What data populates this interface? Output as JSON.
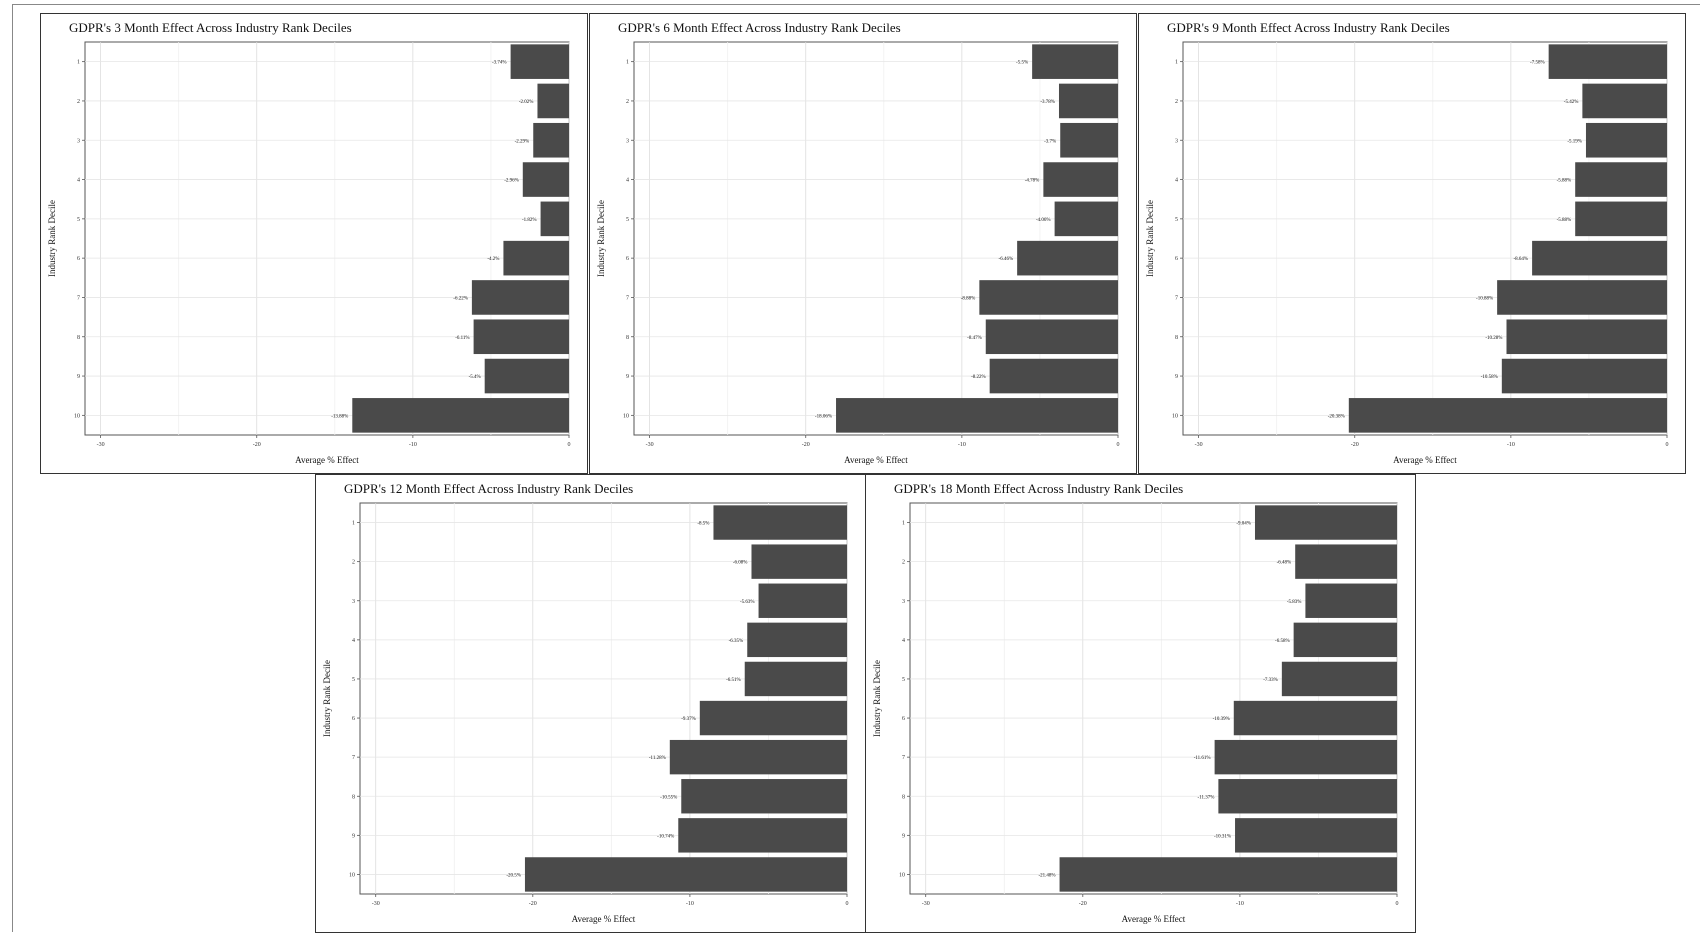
{
  "chart_data": [
    {
      "type": "bar",
      "orientation": "horizontal",
      "title": "GDPR's 3 Month Effect Across Industry Rank Deciles",
      "xlabel": "Average % Effect",
      "ylabel": "Industry Rank Decile",
      "categories": [
        "1",
        "2",
        "3",
        "4",
        "5",
        "6",
        "7",
        "8",
        "9",
        "10"
      ],
      "values": [
        -3.74,
        -2.02,
        -2.29,
        -2.96,
        -1.82,
        -4.2,
        -6.22,
        -6.11,
        -5.4,
        -13.88
      ],
      "value_labels": [
        "-3.74%",
        "-2.02%",
        "-2.29%",
        "-2.96%",
        "-1.82%",
        "-4.2%",
        "-6.22%",
        "-6.11%",
        "-5.4%",
        "-13.88%"
      ],
      "xticks": [
        "-30",
        "-20",
        "-10",
        "0"
      ],
      "xlim": [
        -31,
        0
      ],
      "grid": true,
      "bar_color": "#4a4a4a"
    },
    {
      "type": "bar",
      "orientation": "horizontal",
      "title": "GDPR's 6 Month Effect Across Industry Rank Deciles",
      "xlabel": "Average % Effect",
      "ylabel": "Industry Rank Decile",
      "categories": [
        "1",
        "2",
        "3",
        "4",
        "5",
        "6",
        "7",
        "8",
        "9",
        "10"
      ],
      "values": [
        -5.5,
        -3.78,
        -3.7,
        -4.78,
        -4.06,
        -6.46,
        -8.88,
        -8.47,
        -8.22,
        -18.06
      ],
      "value_labels": [
        "-5.5%",
        "-3.78%",
        "-3.7%",
        "-4.78%",
        "-4.06%",
        "-6.46%",
        "-8.88%",
        "-8.47%",
        "-8.22%",
        "-18.06%"
      ],
      "xticks": [
        "-30",
        "-20",
        "-10",
        "0"
      ],
      "xlim": [
        -31,
        0
      ],
      "grid": true,
      "bar_color": "#4a4a4a"
    },
    {
      "type": "bar",
      "orientation": "horizontal",
      "title": "GDPR's 9 Month Effect Across Industry Rank Deciles",
      "xlabel": "Average % Effect",
      "ylabel": "Industry Rank Decile",
      "categories": [
        "1",
        "2",
        "3",
        "4",
        "5",
        "6",
        "7",
        "8",
        "9",
        "10"
      ],
      "values": [
        -7.58,
        -5.42,
        -5.19,
        -5.88,
        -5.88,
        -8.64,
        -10.88,
        -10.28,
        -10.58,
        -20.38
      ],
      "value_labels": [
        "-7.58%",
        "-5.42%",
        "-5.19%",
        "-5.88%",
        "-5.88%",
        "-8.64%",
        "-10.88%",
        "-10.28%",
        "-10.58%",
        "-20.38%"
      ],
      "xticks": [
        "-30",
        "-20",
        "-10",
        "0"
      ],
      "xlim": [
        -31,
        0
      ],
      "grid": true,
      "bar_color": "#4a4a4a"
    },
    {
      "type": "bar",
      "orientation": "horizontal",
      "title": "GDPR's 12 Month Effect Across Industry Rank Deciles",
      "xlabel": "Average % Effect",
      "ylabel": "Industry Rank Decile",
      "categories": [
        "1",
        "2",
        "3",
        "4",
        "5",
        "6",
        "7",
        "8",
        "9",
        "10"
      ],
      "values": [
        -8.5,
        -6.08,
        -5.63,
        -6.35,
        -6.51,
        -9.37,
        -11.28,
        -10.55,
        -10.74,
        -20.5
      ],
      "value_labels": [
        "-8.5%",
        "-6.08%",
        "-5.63%",
        "-6.35%",
        "-6.51%",
        "-9.37%",
        "-11.28%",
        "-10.55%",
        "-10.74%",
        "-20.5%"
      ],
      "xticks": [
        "-30",
        "-20",
        "-10",
        "0"
      ],
      "xlim": [
        -31,
        0
      ],
      "grid": true,
      "bar_color": "#4a4a4a"
    },
    {
      "type": "bar",
      "orientation": "horizontal",
      "title": "GDPR's 18 Month Effect Across Industry Rank Deciles",
      "xlabel": "Average % Effect",
      "ylabel": "Industry Rank Decile",
      "categories": [
        "1",
        "2",
        "3",
        "4",
        "5",
        "6",
        "7",
        "8",
        "9",
        "10"
      ],
      "values": [
        -9.04,
        -6.48,
        -5.83,
        -6.58,
        -7.33,
        -10.39,
        -11.61,
        -11.37,
        -10.31,
        -21.48
      ],
      "value_labels": [
        "-9.04%",
        "-6.48%",
        "-5.83%",
        "-6.58%",
        "-7.33%",
        "-10.39%",
        "-11.61%",
        "-11.37%",
        "-10.31%",
        "-21.48%"
      ],
      "xticks": [
        "-30",
        "-20",
        "-10",
        "0"
      ],
      "xlim": [
        -31,
        0
      ],
      "grid": true,
      "bar_color": "#4a4a4a"
    }
  ]
}
